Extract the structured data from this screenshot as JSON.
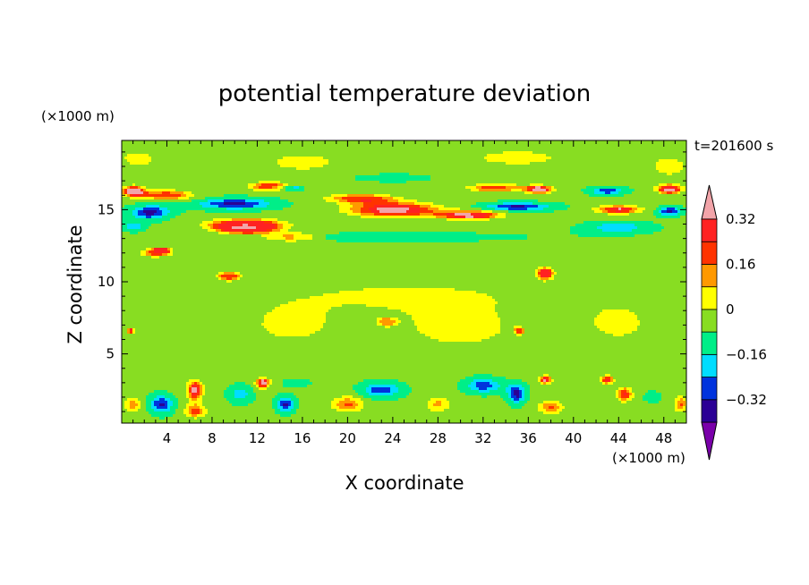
{
  "chart_data": {
    "type": "heatmap",
    "title": "potential temperature deviation",
    "xlabel": "X coordinate",
    "ylabel": "Z coordinate",
    "x_unit": "(×1000 m)",
    "y_unit": "(×1000 m)",
    "time_label": "t=201600 s",
    "xlim": [
      0,
      50
    ],
    "ylim": [
      0.2,
      19.8
    ],
    "x_ticks": [
      4,
      8,
      12,
      16,
      20,
      24,
      28,
      32,
      36,
      40,
      44,
      48
    ],
    "y_ticks": [
      5,
      10,
      15
    ],
    "colorbar": {
      "colors": [
        "#7a00aa",
        "#2b0095",
        "#0033dd",
        "#00ddff",
        "#00ee88",
        "#88dd22",
        "#ffff00",
        "#ff9900",
        "#ff3300",
        "#ff2222",
        "#f2a4a9"
      ],
      "levels": [
        -0.4,
        -0.32,
        -0.24,
        -0.16,
        -0.08,
        0,
        0.08,
        0.16,
        0.24,
        0.32,
        0.4
      ],
      "labels": [
        {
          "value": 0.32,
          "text": "0.32"
        },
        {
          "value": 0.16,
          "text": "0.16"
        },
        {
          "value": 0,
          "text": "0"
        },
        {
          "value": -0.16,
          "text": "−0.16"
        },
        {
          "value": -0.32,
          "text": "−0.32"
        }
      ]
    },
    "background_level": -0.08,
    "features": [
      {
        "cx": 25,
        "cy": 9.0,
        "rx": 28,
        "ry": 2.6,
        "v": 0.01
      },
      {
        "cx": 30,
        "cy": 6.5,
        "rx": 9,
        "ry": 2.2,
        "v": 0.02
      },
      {
        "cx": 15,
        "cy": 6.8,
        "rx": 6,
        "ry": 2.0,
        "v": 0.02
      },
      {
        "cx": 44,
        "cy": 7.0,
        "rx": 5,
        "ry": 2.2,
        "v": 0.02
      },
      {
        "cx": 1.5,
        "cy": 18.5,
        "rx": 4,
        "ry": 1.5,
        "v": 0.02
      },
      {
        "cx": 48.5,
        "cy": 18.0,
        "rx": 4,
        "ry": 1.8,
        "v": 0.02
      },
      {
        "cx": 16,
        "cy": 18.3,
        "rx": 8,
        "ry": 1.6,
        "v": 0.02
      },
      {
        "cx": 35,
        "cy": 18.6,
        "rx": 10,
        "ry": 1.4,
        "v": 0.02
      },
      {
        "cx": 25,
        "cy": 13.1,
        "rx": 26,
        "ry": 0.8,
        "v": -0.12
      },
      {
        "cx": 44,
        "cy": 13.8,
        "rx": 6,
        "ry": 0.8,
        "v": -0.2
      },
      {
        "cx": 24,
        "cy": 17.2,
        "rx": 7,
        "ry": 0.6,
        "v": -0.14
      },
      {
        "cx": 4,
        "cy": 16.0,
        "rx": 4,
        "ry": 0.6,
        "v": 0.26
      },
      {
        "cx": 1.0,
        "cy": 16.3,
        "rx": 1.6,
        "ry": 0.6,
        "v": 0.42
      },
      {
        "cx": 2.5,
        "cy": 14.8,
        "rx": 3.2,
        "ry": 0.9,
        "v": -0.36
      },
      {
        "cx": 1.0,
        "cy": 13.8,
        "rx": 2.0,
        "ry": 0.6,
        "v": -0.2
      },
      {
        "cx": 10,
        "cy": 15.4,
        "rx": 6.5,
        "ry": 0.75,
        "v": -0.35
      },
      {
        "cx": 13,
        "cy": 16.6,
        "rx": 3.0,
        "ry": 0.5,
        "v": 0.26
      },
      {
        "cx": 11,
        "cy": 14.0,
        "rx": 6.0,
        "ry": 0.7,
        "v": 0.28
      },
      {
        "cx": 11,
        "cy": 13.7,
        "rx": 3.5,
        "ry": 0.5,
        "v": 0.42
      },
      {
        "cx": 15,
        "cy": 13.1,
        "rx": 3.0,
        "ry": 0.4,
        "v": 0.24
      },
      {
        "cx": 24,
        "cy": 15.0,
        "rx": 7.0,
        "ry": 0.9,
        "v": 0.4
      },
      {
        "cx": 21,
        "cy": 15.8,
        "rx": 5.0,
        "ry": 0.5,
        "v": 0.2
      },
      {
        "cx": 31,
        "cy": 14.6,
        "rx": 4.5,
        "ry": 0.5,
        "v": 0.35
      },
      {
        "cx": 33,
        "cy": 16.5,
        "rx": 4.0,
        "ry": 0.5,
        "v": 0.24
      },
      {
        "cx": 37,
        "cy": 16.4,
        "rx": 2.0,
        "ry": 0.45,
        "v": 0.42
      },
      {
        "cx": 35,
        "cy": 15.2,
        "rx": 6.0,
        "ry": 0.55,
        "v": -0.34
      },
      {
        "cx": 43,
        "cy": 16.3,
        "rx": 3.0,
        "ry": 0.55,
        "v": -0.3
      },
      {
        "cx": 44,
        "cy": 15.0,
        "rx": 3.5,
        "ry": 0.5,
        "v": 0.34
      },
      {
        "cx": 48.5,
        "cy": 16.4,
        "rx": 1.8,
        "ry": 0.5,
        "v": 0.4
      },
      {
        "cx": 48.5,
        "cy": 14.9,
        "rx": 2.0,
        "ry": 0.6,
        "v": -0.35
      },
      {
        "cx": 15,
        "cy": 16.5,
        "rx": 1.8,
        "ry": 0.35,
        "v": -0.3
      },
      {
        "cx": 3.0,
        "cy": 12.0,
        "rx": 2.5,
        "ry": 0.5,
        "v": 0.2
      },
      {
        "cx": 3.5,
        "cy": 12.2,
        "rx": 1.0,
        "ry": 0.3,
        "v": 0.36
      },
      {
        "cx": 9.5,
        "cy": 10.4,
        "rx": 1.5,
        "ry": 0.45,
        "v": 0.25
      },
      {
        "cx": 37.5,
        "cy": 10.6,
        "rx": 1.1,
        "ry": 0.6,
        "v": 0.4
      },
      {
        "cx": 23.5,
        "cy": 7.2,
        "rx": 1.0,
        "ry": 0.35,
        "v": 0.25
      },
      {
        "cx": 0.8,
        "cy": 6.6,
        "rx": 0.5,
        "ry": 0.3,
        "v": 0.4
      },
      {
        "cx": 35.2,
        "cy": 6.6,
        "rx": 0.5,
        "ry": 0.3,
        "v": 0.4
      },
      {
        "cx": 3.5,
        "cy": 1.5,
        "rx": 2.0,
        "ry": 1.2,
        "v": -0.34
      },
      {
        "cx": 6.5,
        "cy": 2.5,
        "rx": 1.2,
        "ry": 1.2,
        "v": 0.4
      },
      {
        "cx": 6.5,
        "cy": 1.0,
        "rx": 1.8,
        "ry": 0.8,
        "v": 0.18
      },
      {
        "cx": 10.5,
        "cy": 2.2,
        "rx": 2.2,
        "ry": 1.3,
        "v": -0.2
      },
      {
        "cx": 12.5,
        "cy": 3.0,
        "rx": 1.0,
        "ry": 0.6,
        "v": 0.4
      },
      {
        "cx": 14.5,
        "cy": 1.5,
        "rx": 1.5,
        "ry": 1.0,
        "v": -0.34
      },
      {
        "cx": 15.5,
        "cy": 3.0,
        "rx": 2.5,
        "ry": 0.6,
        "v": -0.15
      },
      {
        "cx": 20.0,
        "cy": 1.5,
        "rx": 2.5,
        "ry": 1.0,
        "v": 0.18
      },
      {
        "cx": 23.0,
        "cy": 2.5,
        "rx": 3.5,
        "ry": 1.0,
        "v": -0.3
      },
      {
        "cx": 28.0,
        "cy": 1.5,
        "rx": 2.0,
        "ry": 1.0,
        "v": 0.1
      },
      {
        "cx": 32.0,
        "cy": 2.8,
        "rx": 3.0,
        "ry": 1.0,
        "v": -0.3
      },
      {
        "cx": 35.0,
        "cy": 2.2,
        "rx": 1.5,
        "ry": 1.2,
        "v": -0.34
      },
      {
        "cx": 37.5,
        "cy": 3.2,
        "rx": 1.0,
        "ry": 0.5,
        "v": 0.36
      },
      {
        "cx": 38.0,
        "cy": 1.3,
        "rx": 2.0,
        "ry": 0.8,
        "v": 0.18
      },
      {
        "cx": 43.0,
        "cy": 3.2,
        "rx": 1.0,
        "ry": 0.5,
        "v": 0.32
      },
      {
        "cx": 44.5,
        "cy": 2.2,
        "rx": 1.2,
        "ry": 0.9,
        "v": 0.26
      },
      {
        "cx": 47.0,
        "cy": 2.0,
        "rx": 2.0,
        "ry": 1.0,
        "v": -0.12
      },
      {
        "cx": 49.5,
        "cy": 1.5,
        "rx": 1.0,
        "ry": 1.0,
        "v": 0.18
      },
      {
        "cx": 1.0,
        "cy": 1.5,
        "rx": 1.5,
        "ry": 1.0,
        "v": 0.12
      }
    ]
  }
}
